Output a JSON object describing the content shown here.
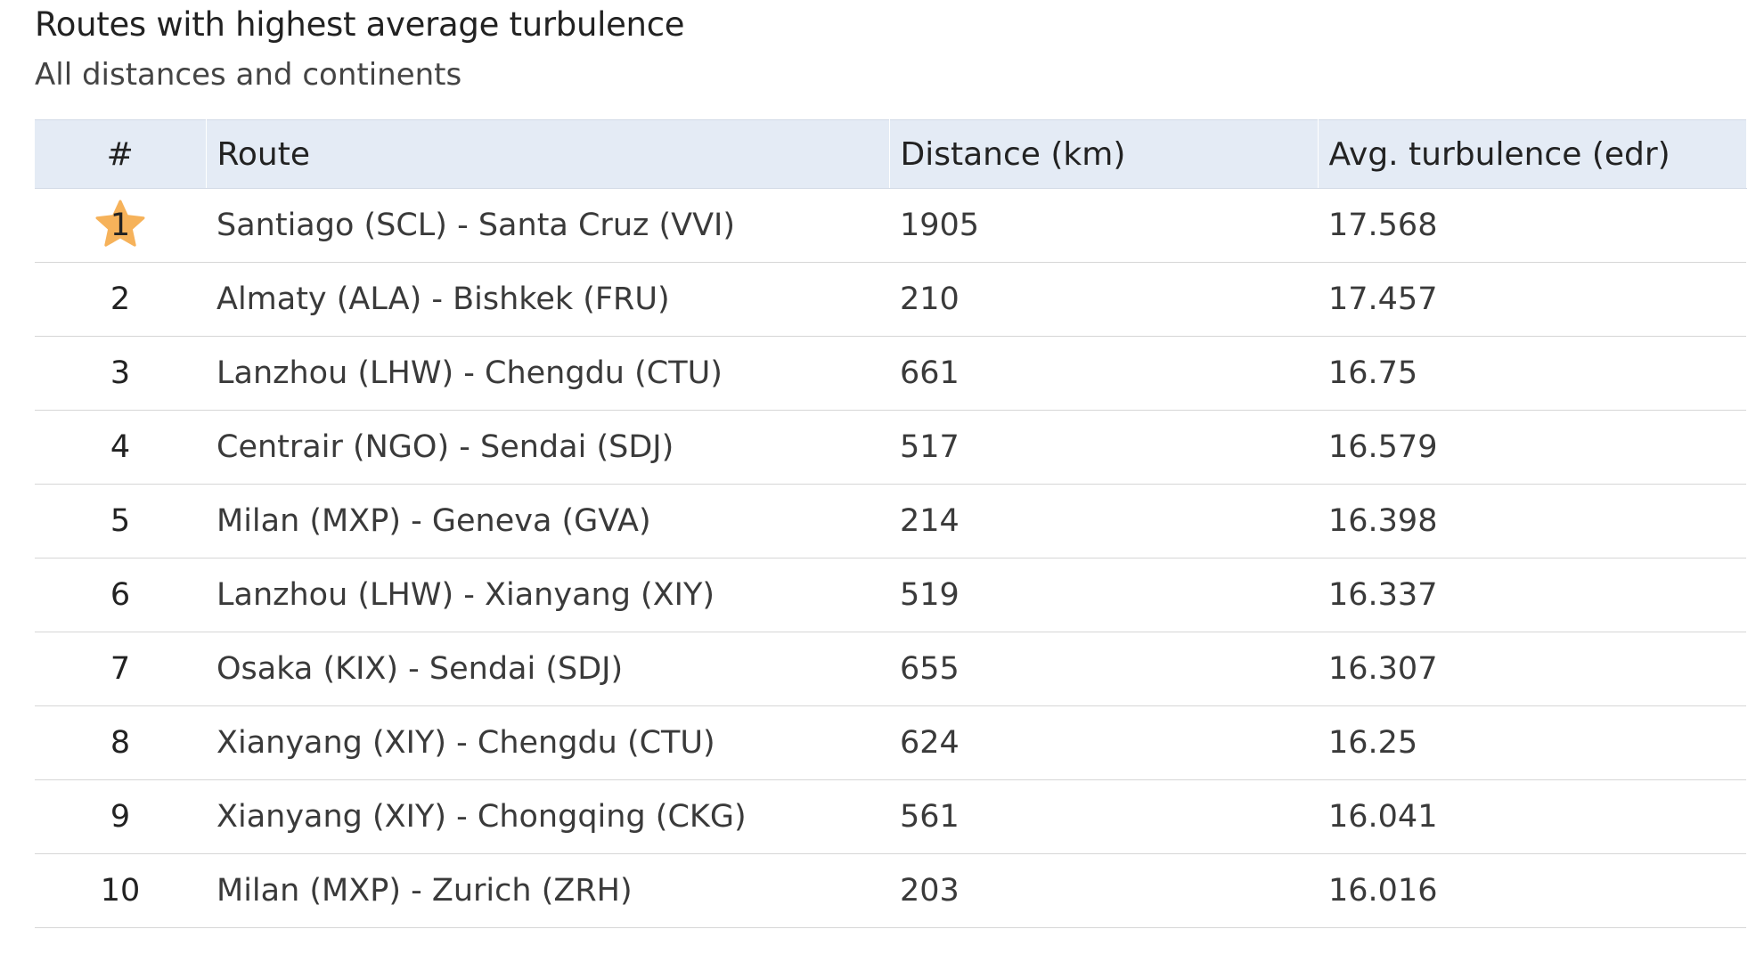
{
  "header": {
    "title": "Routes with highest average turbulence",
    "subtitle": "All distances and continents"
  },
  "table": {
    "columns": [
      "#",
      "Route",
      "Distance (km)",
      "Avg. turbulence (edr)"
    ],
    "rows": [
      {
        "rank": "1",
        "route": "Santiago (SCL) - Santa Cruz (VVI)",
        "distance": "1905",
        "turbulence": "17.568"
      },
      {
        "rank": "2",
        "route": "Almaty (ALA) - Bishkek (FRU)",
        "distance": "210",
        "turbulence": "17.457"
      },
      {
        "rank": "3",
        "route": "Lanzhou (LHW) - Chengdu (CTU)",
        "distance": "661",
        "turbulence": "16.75"
      },
      {
        "rank": "4",
        "route": "Centrair (NGO) - Sendai (SDJ)",
        "distance": "517",
        "turbulence": "16.579"
      },
      {
        "rank": "5",
        "route": "Milan (MXP) - Geneva (GVA)",
        "distance": "214",
        "turbulence": "16.398"
      },
      {
        "rank": "6",
        "route": "Lanzhou (LHW) - Xianyang (XIY)",
        "distance": "519",
        "turbulence": "16.337"
      },
      {
        "rank": "7",
        "route": "Osaka (KIX) - Sendai (SDJ)",
        "distance": "655",
        "turbulence": "16.307"
      },
      {
        "rank": "8",
        "route": "Xianyang (XIY) - Chengdu (CTU)",
        "distance": "624",
        "turbulence": "16.25"
      },
      {
        "rank": "9",
        "route": "Xianyang (XIY) - Chongqing (CKG)",
        "distance": "561",
        "turbulence": "16.041"
      },
      {
        "rank": "10",
        "route": "Milan (MXP) - Zurich (ZRH)",
        "distance": "203",
        "turbulence": "16.016"
      }
    ]
  },
  "icons": {
    "top_rank": "star-icon"
  },
  "colors": {
    "header_bg": "#e4ebf5",
    "star": "#f6b25a",
    "row_border": "#d6d6d6"
  }
}
